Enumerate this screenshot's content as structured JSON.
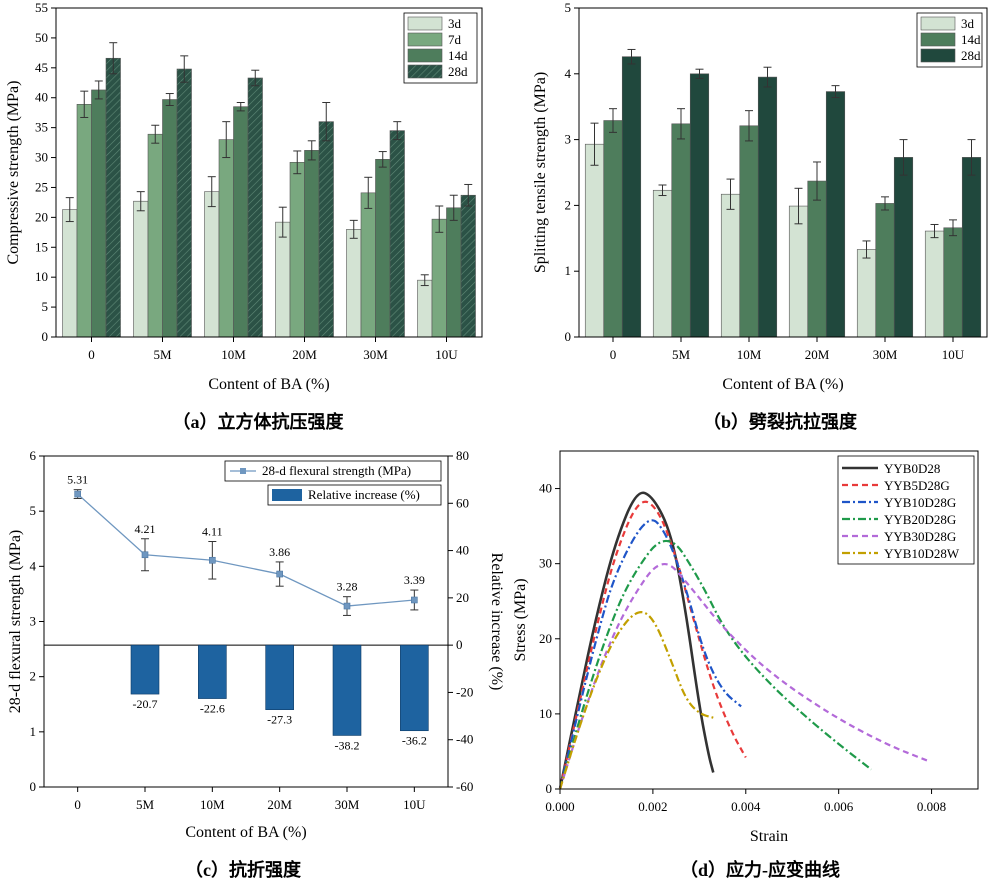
{
  "charts": {
    "a": {
      "chart_data": {
        "type": "bar",
        "caption": "（a）立方体抗压强度",
        "xlabel": "Content of BA (%)",
        "ylabel": "Compressive strength (MPa)",
        "ylim": [
          0,
          55
        ],
        "yticks": [
          "0",
          "5",
          "10",
          "15",
          "20",
          "25",
          "30",
          "35",
          "40",
          "45",
          "50",
          "55"
        ],
        "categories": [
          "0",
          "5M",
          "10M",
          "20M",
          "30M",
          "10U"
        ],
        "legend_position": "top-right",
        "series": [
          {
            "name": "3d",
            "color": "#d3e3d3",
            "values": [
              21.3,
              22.7,
              24.3,
              19.2,
              18.0,
              9.5
            ],
            "errors": [
              2.0,
              1.6,
              2.5,
              2.5,
              1.5,
              0.9
            ]
          },
          {
            "name": "7d",
            "color": "#79a87f",
            "values": [
              38.9,
              33.9,
              33.0,
              29.2,
              24.1,
              19.7
            ],
            "errors": [
              2.2,
              1.5,
              3.0,
              1.9,
              2.6,
              2.2
            ]
          },
          {
            "name": "14d",
            "color": "#4e7d5c",
            "values": [
              41.3,
              39.7,
              38.5,
              31.2,
              29.7,
              21.6
            ],
            "errors": [
              1.5,
              1.0,
              0.7,
              1.6,
              1.3,
              2.1
            ]
          },
          {
            "name": "28d",
            "color": "#2b5246",
            "pattern": "hatch",
            "values": [
              46.6,
              44.8,
              43.3,
              36.0,
              34.5,
              23.7
            ],
            "errors": [
              2.6,
              2.2,
              1.3,
              3.2,
              1.5,
              1.8
            ]
          }
        ]
      }
    },
    "b": {
      "chart_data": {
        "type": "bar",
        "caption": "（b）劈裂抗拉强度",
        "xlabel": "Content of BA (%)",
        "ylabel": "Splitting tensile strength (MPa)",
        "ylim": [
          0,
          5
        ],
        "yticks": [
          "0",
          "1",
          "2",
          "3",
          "4",
          "5"
        ],
        "categories": [
          "0",
          "5M",
          "10M",
          "20M",
          "30M",
          "10U"
        ],
        "legend_position": "top-right",
        "series": [
          {
            "name": "3d",
            "color": "#d3e3d3",
            "values": [
              2.93,
              2.23,
              2.17,
              1.99,
              1.33,
              1.61
            ],
            "errors": [
              0.32,
              0.08,
              0.23,
              0.27,
              0.13,
              0.1
            ]
          },
          {
            "name": "14d",
            "color": "#4e7d5c",
            "values": [
              3.29,
              3.24,
              3.21,
              2.37,
              2.03,
              1.66
            ],
            "errors": [
              0.18,
              0.23,
              0.23,
              0.29,
              0.1,
              0.12
            ]
          },
          {
            "name": "28d",
            "color": "#20483d",
            "values": [
              4.26,
              4.0,
              3.95,
              3.73,
              2.73,
              2.73
            ],
            "errors": [
              0.11,
              0.07,
              0.15,
              0.09,
              0.27,
              0.27
            ]
          }
        ]
      }
    },
    "c": {
      "chart_data": {
        "type": "line",
        "caption": "（c）抗折强度",
        "xlabel": "Content of BA (%)",
        "ylabel": "28-d flexural strength (MPa)",
        "y2label": "Relative increase (%)",
        "ylim": [
          0,
          6
        ],
        "yticks": [
          "0",
          "1",
          "2",
          "3",
          "4",
          "5",
          "6"
        ],
        "y2lim": [
          -60,
          80
        ],
        "y2ticks": [
          "-60",
          "-40",
          "-20",
          "0",
          "20",
          "40",
          "60",
          "80"
        ],
        "categories": [
          "0",
          "5M",
          "10M",
          "20M",
          "30M",
          "10U"
        ],
        "legend_position": "top-right",
        "line": {
          "name": "28-d flexural strength (MPa)",
          "color": "#6f97c0",
          "values": [
            5.31,
            4.21,
            4.11,
            3.86,
            3.28,
            3.39
          ],
          "labels": [
            "5.31",
            "4.21",
            "4.11",
            "3.86",
            "3.28",
            "3.39"
          ],
          "errors": [
            0.08,
            0.29,
            0.34,
            0.22,
            0.17,
            0.18
          ]
        },
        "bars": {
          "name": "Relative increase (%)",
          "color": "#1e63a0",
          "values": [
            0,
            -20.7,
            -22.6,
            -27.3,
            -38.2,
            -36.2
          ],
          "labels": [
            "",
            "-20.7",
            "-22.6",
            "-27.3",
            "-38.2",
            "-36.2"
          ]
        }
      }
    },
    "d": {
      "chart_data": {
        "type": "line",
        "caption": "（d）应力-应变曲线",
        "xlabel": "Strain",
        "ylabel": "Stress (MPa)",
        "xlim": [
          0,
          0.009
        ],
        "ylim": [
          0,
          45
        ],
        "xticks": [
          "0.000",
          "0.002",
          "0.004",
          "0.006",
          "0.008"
        ],
        "xtick_values": [
          0,
          0.002,
          0.004,
          0.006,
          0.008
        ],
        "yticks": [
          "0",
          "10",
          "20",
          "30",
          "40"
        ],
        "ytick_values": [
          0,
          10,
          20,
          30,
          40
        ],
        "legend_position": "top-right",
        "series": [
          {
            "name": "YYB0D28",
            "color": "#333333",
            "dash": "solid",
            "x": [
              0,
              0.0004,
              0.0008,
              0.0012,
              0.00165,
              0.002,
              0.0024,
              0.0027,
              0.003,
              0.0032,
              0.0033
            ],
            "y": [
              0,
              12,
              23.5,
              33,
              39.8,
              39,
              34,
              24,
              11,
              4.5,
              2.2
            ]
          },
          {
            "name": "YYB5D28G",
            "color": "#e83a3a",
            "dash": "dashed",
            "x": [
              0,
              0.0004,
              0.0008,
              0.0012,
              0.0017,
              0.0021,
              0.0025,
              0.0029,
              0.0033,
              0.0037,
              0.004
            ],
            "y": [
              0,
              11,
              22,
              31.5,
              38.8,
              37.5,
              31,
              22,
              13.5,
              7.5,
              4.2
            ]
          },
          {
            "name": "YYB10D28G",
            "color": "#1f55c8",
            "dash": "dashdot",
            "x": [
              0,
              0.0004,
              0.0008,
              0.0012,
              0.0019,
              0.0023,
              0.0027,
              0.0031,
              0.0035,
              0.0039
            ],
            "y": [
              0,
              10.5,
              20.5,
              29,
              36.8,
              34,
              27,
              18,
              13,
              11
            ]
          },
          {
            "name": "YYB20D28G",
            "color": "#1f9a4a",
            "dash": "dashdot",
            "x": [
              0,
              0.0005,
              0.001,
              0.0015,
              0.0023,
              0.003,
              0.0036,
              0.0045,
              0.0055,
              0.0062,
              0.0067
            ],
            "y": [
              0,
              11,
              20.5,
              28,
              34.7,
              28,
              20.5,
              14,
              8.5,
              5,
              2.6
            ]
          },
          {
            "name": "YYB30D28G",
            "color": "#b36ad9",
            "dash": "dashed",
            "x": [
              0,
              0.0005,
              0.001,
              0.0015,
              0.0022,
              0.0028,
              0.0035,
              0.0045,
              0.0058,
              0.007,
              0.0079
            ],
            "y": [
              0,
              10,
              18.5,
              25,
              31.2,
              27,
              21.5,
              15.5,
              10,
              6,
              3.8
            ]
          },
          {
            "name": "YYB10D28W",
            "color": "#c2a000",
            "dash": "dashdot",
            "x": [
              0,
              0.0004,
              0.0008,
              0.0012,
              0.00165,
              0.002,
              0.0024,
              0.0027,
              0.003,
              0.0033
            ],
            "y": [
              0,
              8,
              15,
              20.5,
              23.9,
              23,
              17,
              12,
              10,
              9.5
            ]
          }
        ]
      }
    }
  }
}
